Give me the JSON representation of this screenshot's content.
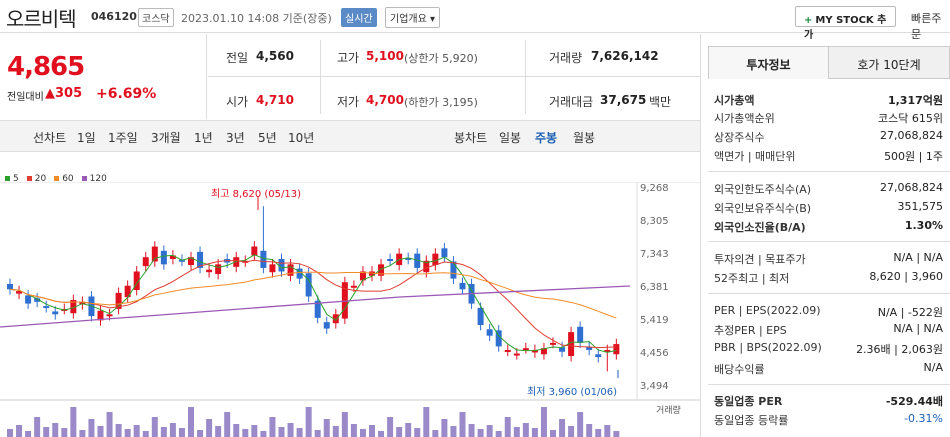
{
  "header": {
    "name": "오르비텍",
    "code": "046120",
    "market": "코스닥",
    "timestamp": "2023.01.10 14:08 기준(장중)",
    "realtime": "실시간",
    "company_info": "기업개요 ▾",
    "my_stock": "MY STOCK 추가",
    "quick_order": "빠른주문"
  },
  "price": {
    "current": "4,865",
    "change_label": "전일대비",
    "change": "▲305",
    "change_pct": "+6.69%"
  },
  "quotes": {
    "prev_label": "전일",
    "prev": "4,560",
    "high_label": "고가",
    "high": "5,100",
    "upper_limit": "(상한가 5,920)",
    "volume_label": "거래량",
    "volume": "7,626,142",
    "open_label": "시가",
    "open": "4,710",
    "low_label": "저가",
    "low": "4,700",
    "lower_limit": "(하한가 3,195)",
    "amount_label": "거래대금",
    "amount": "37,675",
    "amount_unit": "백만"
  },
  "period_tabs": {
    "title": "선차트",
    "items": [
      "1일",
      "1주일",
      "3개월",
      "1년",
      "3년",
      "5년",
      "10년"
    ]
  },
  "candle_tabs": {
    "title": "봉차트",
    "items": [
      "일봉",
      "주봉",
      "월봉"
    ],
    "selected": 1
  },
  "chart_data": {
    "type": "candlestick",
    "ma_legend": [
      {
        "name": "5",
        "color": "#2ca02c"
      },
      {
        "name": "20",
        "color": "#e03c31"
      },
      {
        "name": "60",
        "color": "#f28c28"
      },
      {
        "name": "120",
        "color": "#9b59b6"
      }
    ],
    "yticks": [
      "9,268",
      "8,305",
      "7,343",
      "6,381",
      "5,419",
      "4,456",
      "3,494"
    ],
    "high_note": "최고 8,620 (05/13)",
    "low_note": "최저 3,960 (01/06)",
    "volume_label": "거래량"
  },
  "right_panel": {
    "tabs": [
      "투자정보",
      "호가 10단계"
    ],
    "rows": [
      {
        "label": "시가총액",
        "value": "1,317억원",
        "bold": true
      },
      {
        "label": "시가총액순위",
        "value": "코스닥 615위"
      },
      {
        "label": "상장주식수",
        "value": "27,068,824"
      },
      {
        "label": "액면가 | 매매단위",
        "value": "500원 | 1주"
      },
      {
        "label": "외국인한도주식수(A)",
        "value": "27,068,824"
      },
      {
        "label": "외국인보유주식수(B)",
        "value": "351,575"
      },
      {
        "label": "외국인소진율(B/A)",
        "value": "1.30%",
        "bold": true
      },
      {
        "label": "투자의견 | 목표주가",
        "value": "N/A | N/A"
      },
      {
        "label": "52주최고 | 최저",
        "value": "8,620 | 3,960"
      },
      {
        "label": "PER | EPS(2022.09)",
        "value": "N/A | -522원"
      },
      {
        "label": "추정PER | EPS",
        "value": "N/A | N/A"
      },
      {
        "label": "PBR | BPS(2022.09)",
        "value": "2.36배 | 2,063원"
      },
      {
        "label": "배당수익률",
        "value": "N/A"
      },
      {
        "label": "동일업종 PER",
        "value": "-529.44배",
        "bold": true
      },
      {
        "label": "동일업종 등락률",
        "value": "-0.31%",
        "blue": true
      }
    ]
  }
}
